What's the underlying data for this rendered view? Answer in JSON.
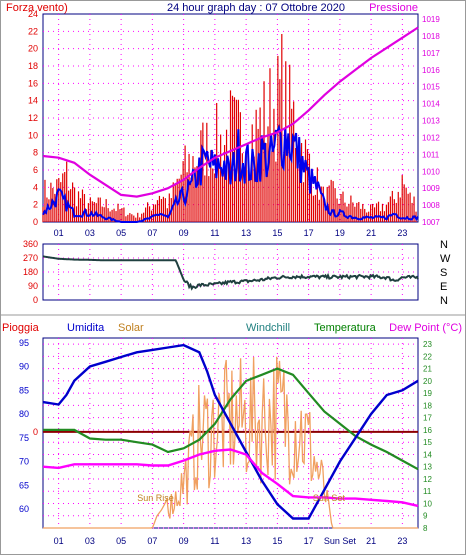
{
  "header": {
    "left_label": "Forza vento)",
    "title": "24 hour graph day : 07 Ottobre 2020",
    "right_label": "Pressione"
  },
  "bottom_header": {
    "pioggia": "Pioggia",
    "umidita": "Umidita",
    "solar": "Solar",
    "windchill": "Windchill",
    "temperatura": "Temperatura",
    "dewpoint": "Dew Point (°C)"
  },
  "colors": {
    "wind": "#e00000",
    "wind_avg": "#0000ee",
    "pressure": "#e000e0",
    "grid": "#ff00ff",
    "direction": "#204040",
    "humidity": "#0000cc",
    "solar": "#f0a060",
    "temperature": "#228b22",
    "dewpoint": "#ff00ff",
    "rain": "#8b0000",
    "sun_label": "#c08020",
    "frame": "#000080",
    "border": "#999999"
  },
  "chart_data": [
    {
      "type": "line",
      "title": "24 hour graph day : 07 Ottobre 2020",
      "x_ticks": [
        "01",
        "03",
        "05",
        "07",
        "09",
        "11",
        "13",
        "15",
        "17",
        "19",
        "21",
        "23"
      ],
      "left_axis": {
        "label": "Forza vento)",
        "ticks": [
          0,
          2,
          4,
          6,
          8,
          10,
          12,
          14,
          16,
          18,
          20,
          22,
          24
        ],
        "range": [
          0,
          24
        ]
      },
      "right_axis": {
        "label": "Pressione",
        "ticks": [
          1007,
          1008,
          1009,
          1010,
          1011,
          1012,
          1013,
          1014,
          1015,
          1016,
          1017,
          1018,
          1019
        ],
        "range": [
          1007,
          1019.3
        ]
      },
      "grid": true,
      "series": [
        {
          "name": "Forza vento)",
          "axis": "left",
          "style": "gust-bars",
          "x": [
            0,
            1,
            1.5,
            2,
            3,
            4,
            5,
            6,
            7,
            7.5,
            8,
            8.5,
            9,
            9.5,
            10,
            10.5,
            11,
            11.5,
            12,
            12.5,
            13,
            13.5,
            14,
            14.5,
            15,
            15.3,
            15.6,
            16,
            16.5,
            17,
            17.5,
            18,
            18.5,
            19,
            20,
            21,
            22,
            22.5,
            23,
            23.5,
            24
          ],
          "y": [
            5,
            6,
            8,
            5,
            3,
            3,
            2,
            1,
            3,
            5,
            3,
            6,
            9,
            10,
            12,
            13,
            14,
            13,
            16,
            15,
            15,
            15,
            17,
            19,
            20,
            23,
            19,
            18,
            13,
            10,
            7,
            4,
            5,
            4,
            3,
            2,
            3,
            4,
            7,
            4,
            3
          ]
        },
        {
          "name": "",
          "axis": "left",
          "style": "line",
          "x": [
            0,
            1,
            1.5,
            2,
            3,
            4,
            5,
            6,
            7,
            7.5,
            8,
            8.5,
            9,
            9.5,
            10,
            10.5,
            11,
            11.5,
            12,
            12.5,
            13,
            13.5,
            14,
            14.5,
            15,
            15.5,
            16,
            16.5,
            17,
            17.5,
            18,
            18.5,
            19,
            20,
            21,
            22,
            22.5,
            23,
            24
          ],
          "y": [
            1,
            3,
            2,
            1,
            1,
            0.5,
            0,
            0,
            0.5,
            1,
            0.5,
            2,
            3,
            4,
            6,
            7,
            6,
            7,
            5,
            8,
            7,
            6,
            8,
            7,
            9,
            10,
            9,
            7,
            5,
            4,
            2,
            1,
            1,
            0.5,
            0.5,
            0.5,
            1,
            0.5,
            0.5
          ]
        },
        {
          "name": "Pressione",
          "axis": "right",
          "style": "line",
          "x": [
            0,
            1,
            2,
            3,
            4,
            5,
            6,
            7,
            8,
            9,
            10,
            11,
            12,
            13,
            14,
            15,
            16,
            17,
            18,
            19,
            20,
            21,
            22,
            23,
            24
          ],
          "y": [
            1010.9,
            1010.8,
            1010.5,
            1009.8,
            1009.2,
            1008.6,
            1008.5,
            1008.7,
            1009.0,
            1009.5,
            1010.2,
            1010.8,
            1011.2,
            1011.6,
            1012.0,
            1012.3,
            1012.8,
            1013.6,
            1014.5,
            1015.3,
            1016.0,
            1016.7,
            1017.3,
            1017.9,
            1018.5
          ]
        }
      ]
    },
    {
      "type": "line",
      "title": "",
      "y_axis": {
        "ticks": [
          0,
          90,
          180,
          270,
          360
        ],
        "range": [
          0,
          360
        ]
      },
      "direction_labels": [
        "N",
        "W",
        "S",
        "E",
        "N"
      ],
      "series": [
        {
          "name": "",
          "x": [
            0,
            1,
            2,
            3,
            4,
            5,
            6,
            7,
            8,
            8.5,
            9,
            9.5,
            10,
            11,
            12,
            13,
            14,
            15,
            16,
            17,
            18,
            19,
            20,
            21,
            22,
            22.5,
            23,
            24
          ],
          "y": [
            280,
            265,
            260,
            258,
            255,
            255,
            255,
            255,
            255,
            255,
            130,
            80,
            95,
            100,
            115,
            120,
            130,
            145,
            150,
            150,
            148,
            148,
            150,
            150,
            145,
            125,
            145,
            145
          ]
        }
      ]
    },
    {
      "type": "line",
      "title": "",
      "left_axis": {
        "ticks": [
          60,
          65,
          70,
          75,
          80,
          85,
          90,
          95
        ],
        "range": [
          56,
          96
        ]
      },
      "right_axis": {
        "ticks": [
          8,
          9,
          10,
          11,
          12,
          13,
          14,
          15,
          16,
          17,
          18,
          19,
          20,
          21,
          22,
          23
        ],
        "range": [
          8,
          23.5
        ]
      },
      "x_ticks": [
        "01",
        "03",
        "05",
        "07",
        "09",
        "11",
        "13",
        "15",
        "17",
        "Sun Set",
        "21",
        "23"
      ],
      "annotations": [
        "Sun Rise",
        "Sun Set",
        "0"
      ],
      "series": [
        {
          "name": "Umidita",
          "axis": "left",
          "x": [
            0,
            1,
            1.5,
            2,
            3,
            4,
            5,
            6,
            7,
            8,
            9,
            10,
            10.5,
            11,
            12,
            13,
            14,
            15,
            16,
            17,
            18,
            19,
            20,
            21,
            22,
            23,
            24
          ],
          "y": [
            82.5,
            82,
            84,
            87,
            90,
            91,
            92,
            93,
            93.5,
            94,
            94.5,
            93,
            89,
            84,
            78,
            72,
            66,
            61,
            58,
            58,
            64,
            70,
            75,
            80,
            84,
            85,
            87
          ]
        },
        {
          "name": "Solar",
          "axis": "right",
          "x": [
            0,
            7,
            7.3,
            7.6,
            8,
            8.5,
            9,
            9.5,
            10,
            11,
            12,
            13,
            14,
            15,
            16,
            16.5,
            17,
            17.5,
            18,
            18.5,
            19,
            24
          ],
          "y": [
            8,
            8,
            9,
            9.5,
            10.5,
            12,
            14,
            17,
            20,
            21,
            22,
            22,
            22,
            23,
            22,
            21,
            19,
            16,
            13,
            8,
            8,
            8
          ]
        },
        {
          "name": "Temperatura",
          "axis": "right",
          "x": [
            0,
            1,
            2,
            3,
            4,
            5,
            6,
            7,
            8,
            9,
            10,
            11,
            12,
            13,
            14,
            15,
            16,
            17,
            18,
            19,
            20,
            21,
            22,
            23,
            24
          ],
          "y": [
            16,
            16,
            16,
            15.3,
            15.2,
            15.2,
            15.0,
            14.8,
            14.2,
            14.5,
            15.2,
            16.5,
            18.5,
            20,
            20.5,
            21,
            20.5,
            19,
            17.5,
            16.5,
            15.5,
            14.8,
            14.2,
            13.5,
            12.8
          ]
        },
        {
          "name": "Dew Point (°C)",
          "axis": "right",
          "x": [
            0,
            1,
            2,
            3,
            4,
            5,
            6,
            7,
            8,
            9,
            10,
            11,
            12,
            13,
            14,
            15,
            16,
            17,
            18,
            19,
            20,
            21,
            22,
            23,
            24
          ],
          "y": [
            13.0,
            12.9,
            13.2,
            13.2,
            13.2,
            13.2,
            13.2,
            13.1,
            13.1,
            13.5,
            14.0,
            14.3,
            14.4,
            14.0,
            12.5,
            11.6,
            10.6,
            10.5,
            10.5,
            10.4,
            10.4,
            10.3,
            10.2,
            10.1,
            9.8
          ]
        },
        {
          "name": "Pioggia",
          "axis": "rain",
          "x": [
            0,
            24
          ],
          "y": [
            0,
            0
          ]
        }
      ]
    }
  ]
}
